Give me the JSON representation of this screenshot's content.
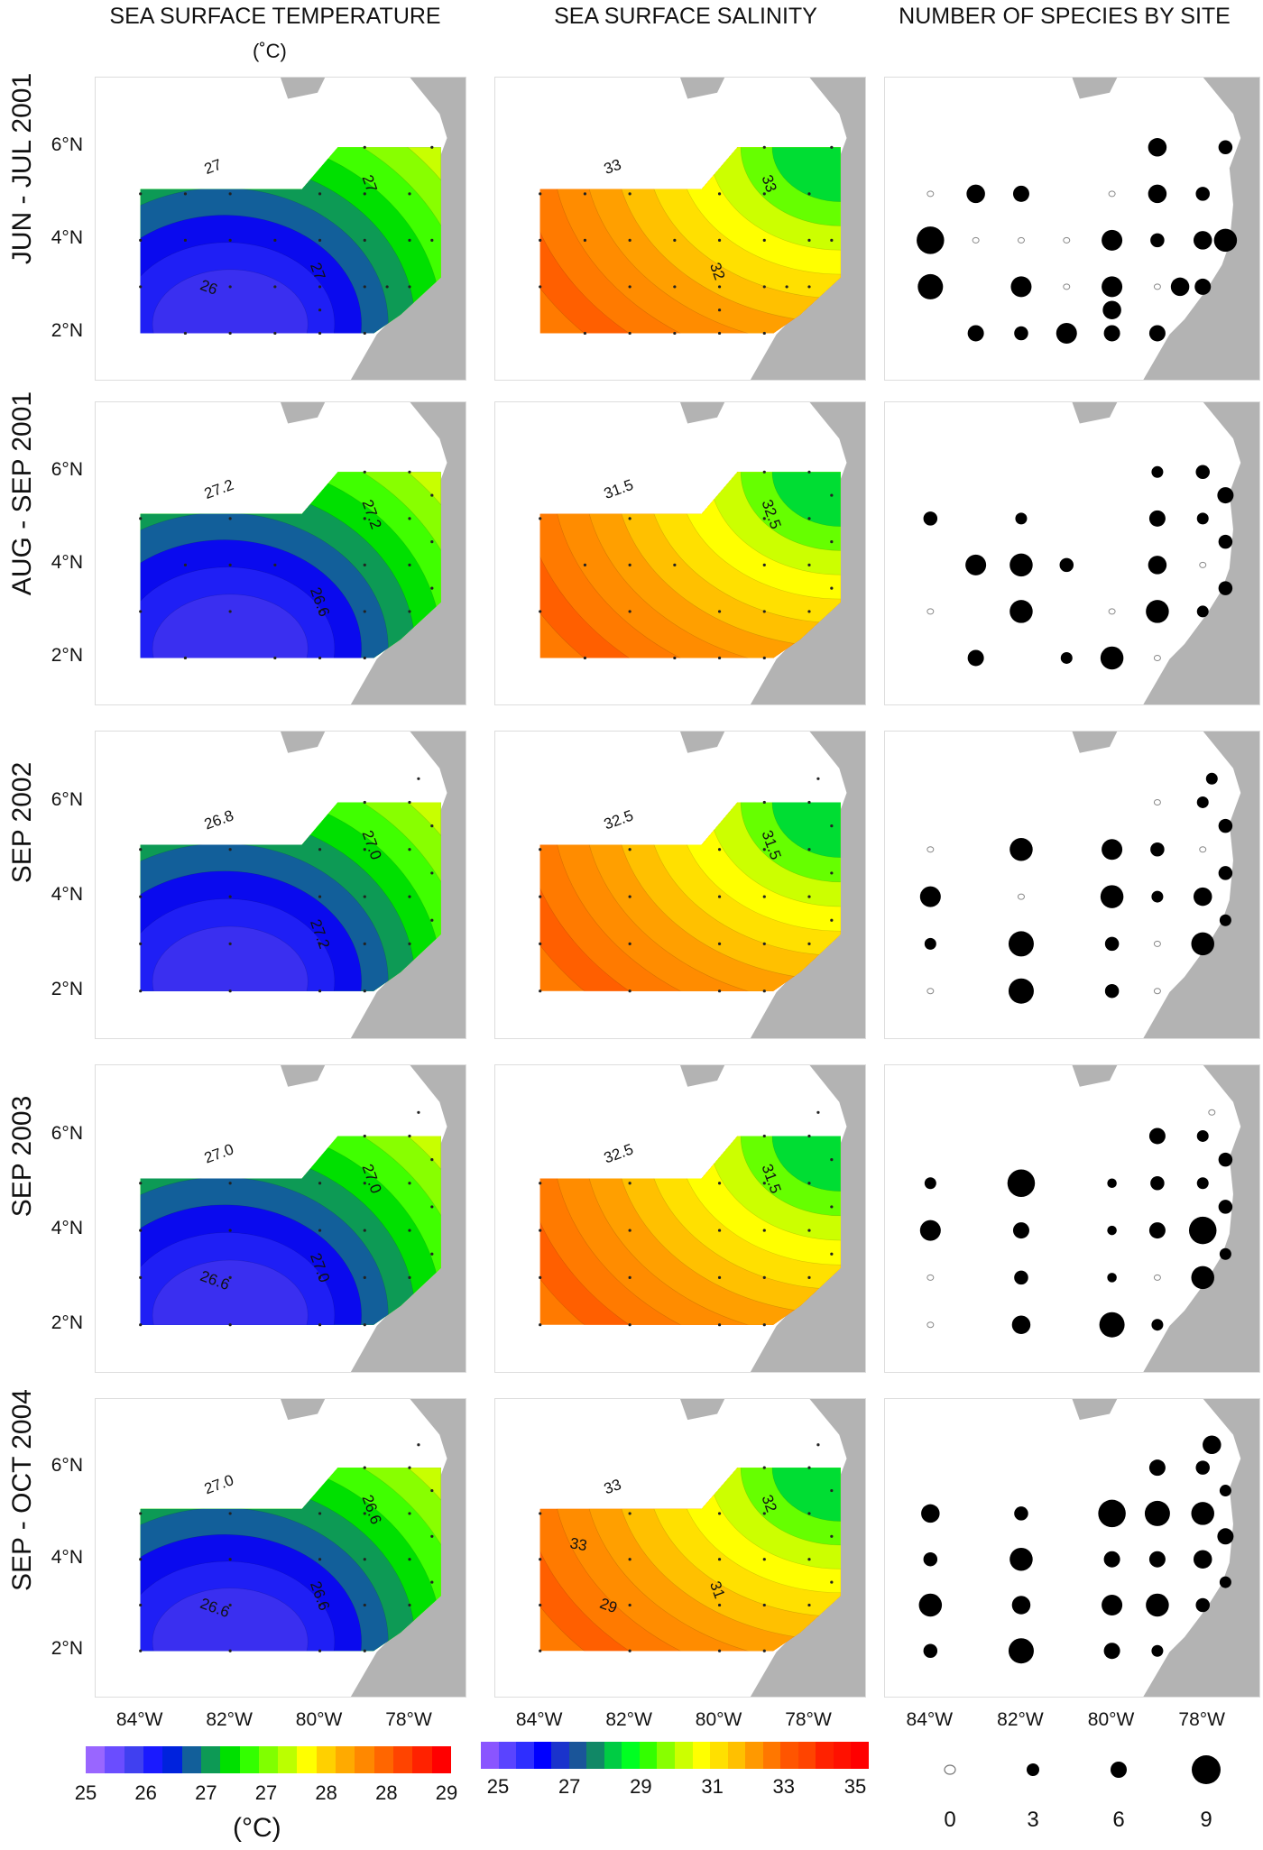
{
  "figure": {
    "columns": [
      {
        "title": "SEA SURFACE TEMPERATURE",
        "unit": "(˚C)"
      },
      {
        "title": "SEA SURFACE SALINITY"
      },
      {
        "title": "NUMBER OF SPECIES BY SITE"
      }
    ],
    "rows": [
      "JUN - JUL 2001",
      "AUG - SEP 2001",
      "SEP  2002",
      "SEP  2003",
      "SEP - OCT  2004"
    ],
    "y_ticks": [
      "6°N",
      "4°N",
      "2°N"
    ],
    "x_ticks": [
      "84°W",
      "82°W",
      "80°W",
      "78°W"
    ],
    "land_color": "#b3b3b3",
    "sst_colorbar": {
      "labels": [
        "25",
        "26",
        "27",
        "27",
        "28",
        "28",
        "29"
      ],
      "unit": "(°C)",
      "colors": [
        "#9966ff",
        "#6a4dff",
        "#4040f0",
        "#1a1aff",
        "#0022dd",
        "#125f9a",
        "#0d9a55",
        "#00e000",
        "#33ff00",
        "#80ff00",
        "#bbff00",
        "#ffff00",
        "#ffd000",
        "#ffaa00",
        "#ff8800",
        "#ff6600",
        "#ff4400",
        "#ff2200",
        "#ff0000"
      ]
    },
    "sss_colorbar": {
      "labels": [
        "25",
        "27",
        "29",
        "31",
        "33",
        "35"
      ],
      "colors": [
        "#8a55ff",
        "#5a44ff",
        "#2e2eff",
        "#0000ff",
        "#1a33cc",
        "#1a5599",
        "#118866",
        "#00cc44",
        "#00ff22",
        "#33ff00",
        "#88ff00",
        "#ccff00",
        "#ffff00",
        "#ffe000",
        "#ffc000",
        "#ff9900",
        "#ff7700",
        "#ff5500",
        "#ff4400",
        "#ff2200",
        "#ff1100",
        "#ff0000"
      ]
    },
    "species_legend": {
      "labels": [
        "0",
        "3",
        "6",
        "9"
      ]
    }
  },
  "chart_data": [
    {
      "type": "heatmap",
      "title": "SEA SURFACE TEMPERATURE (°C)",
      "panels": [
        {
          "period": "JUN - JUL 2001",
          "contour_labels": [
            "27",
            "27",
            "27",
            "26"
          ],
          "range_approx": [
            25.2,
            27.8
          ]
        },
        {
          "period": "AUG - SEP 2001",
          "contour_labels": [
            "27.2",
            "27.2",
            "26.6"
          ],
          "range_approx": [
            26.2,
            28.0
          ]
        },
        {
          "period": "SEP 2002",
          "contour_labels": [
            "26.8",
            "27.0",
            "27.2"
          ],
          "range_approx": [
            26.5,
            27.4
          ]
        },
        {
          "period": "SEP 2003",
          "contour_labels": [
            "27.0",
            "27.0",
            "27.0",
            "26.6"
          ],
          "range_approx": [
            25.8,
            29.0
          ]
        },
        {
          "period": "SEP - OCT 2004",
          "contour_labels": [
            "27.0",
            "26.6",
            "26.6",
            "26.6"
          ],
          "range_approx": [
            26.2,
            27.6
          ]
        }
      ],
      "colorbar_ticks": [
        25,
        26,
        27,
        27,
        28,
        28,
        29
      ],
      "xlabel": "Longitude",
      "ylabel": "Latitude",
      "xticks": [
        "84°W",
        "82°W",
        "80°W",
        "78°W"
      ],
      "yticks": [
        "2°N",
        "4°N",
        "6°N"
      ]
    },
    {
      "type": "heatmap",
      "title": "SEA SURFACE SALINITY",
      "panels": [
        {
          "period": "JUN - JUL 2001",
          "contour_labels": [
            "33",
            "33",
            "32"
          ],
          "range_approx": [
            29,
            33.5
          ]
        },
        {
          "period": "AUG - SEP 2001",
          "contour_labels": [
            "31.5",
            "32.5"
          ],
          "range_approx": [
            28,
            33.3
          ]
        },
        {
          "period": "SEP 2002",
          "contour_labels": [
            "32.5",
            "31.5"
          ],
          "range_approx": [
            29.5,
            33.6
          ]
        },
        {
          "period": "SEP 2003",
          "contour_labels": [
            "32.5",
            "31.5"
          ],
          "range_approx": [
            30,
            33.5
          ]
        },
        {
          "period": "SEP - OCT 2004",
          "contour_labels": [
            "33",
            "32",
            "31",
            "29",
            "33"
          ],
          "range_approx": [
            25,
            35
          ]
        }
      ],
      "colorbar_ticks": [
        25,
        27,
        29,
        31,
        33,
        35
      ],
      "xticks": [
        "84°W",
        "82°W",
        "80°W",
        "78°W"
      ],
      "yticks": [
        "2°N",
        "4°N",
        "6°N"
      ]
    },
    {
      "type": "scatter",
      "title": "NUMBER OF SPECIES BY SITE",
      "size_legend": [
        0,
        3,
        6,
        9
      ],
      "panels": [
        {
          "period": "JUN - JUL 2001",
          "sites": [
            {
              "lon": -79,
              "lat": 6,
              "n": 5
            },
            {
              "lon": -77.5,
              "lat": 6,
              "n": 3
            },
            {
              "lon": -84,
              "lat": 5,
              "n": 0
            },
            {
              "lon": -83,
              "lat": 5,
              "n": 5
            },
            {
              "lon": -82,
              "lat": 5,
              "n": 4
            },
            {
              "lon": -80,
              "lat": 5,
              "n": 0
            },
            {
              "lon": -79,
              "lat": 5,
              "n": 5
            },
            {
              "lon": -78,
              "lat": 5,
              "n": 3
            },
            {
              "lon": -84,
              "lat": 4,
              "n": 9
            },
            {
              "lon": -83,
              "lat": 4,
              "n": 0
            },
            {
              "lon": -82,
              "lat": 4,
              "n": 0
            },
            {
              "lon": -81,
              "lat": 4,
              "n": 0
            },
            {
              "lon": -80,
              "lat": 4,
              "n": 6
            },
            {
              "lon": -79,
              "lat": 4,
              "n": 3
            },
            {
              "lon": -78,
              "lat": 4,
              "n": 5
            },
            {
              "lon": -77.5,
              "lat": 4,
              "n": 7
            },
            {
              "lon": -84,
              "lat": 3,
              "n": 8
            },
            {
              "lon": -82,
              "lat": 3,
              "n": 6
            },
            {
              "lon": -81,
              "lat": 3,
              "n": 0
            },
            {
              "lon": -80,
              "lat": 3,
              "n": 6
            },
            {
              "lon": -80,
              "lat": 2.5,
              "n": 5
            },
            {
              "lon": -79,
              "lat": 3,
              "n": 0
            },
            {
              "lon": -78.5,
              "lat": 3,
              "n": 5
            },
            {
              "lon": -78,
              "lat": 3,
              "n": 4
            },
            {
              "lon": -83,
              "lat": 2,
              "n": 4
            },
            {
              "lon": -82,
              "lat": 2,
              "n": 3
            },
            {
              "lon": -81,
              "lat": 2,
              "n": 6
            },
            {
              "lon": -80,
              "lat": 2,
              "n": 4
            },
            {
              "lon": -79,
              "lat": 2,
              "n": 4
            }
          ]
        },
        {
          "period": "AUG - SEP 2001",
          "sites": [
            {
              "lon": -79,
              "lat": 6,
              "n": 2
            },
            {
              "lon": -78,
              "lat": 6,
              "n": 3
            },
            {
              "lon": -77.5,
              "lat": 5.5,
              "n": 4
            },
            {
              "lon": -84,
              "lat": 5,
              "n": 3
            },
            {
              "lon": -82,
              "lat": 5,
              "n": 2
            },
            {
              "lon": -79,
              "lat": 5,
              "n": 4
            },
            {
              "lon": -78,
              "lat": 5,
              "n": 2
            },
            {
              "lon": -77.5,
              "lat": 4.5,
              "n": 3
            },
            {
              "lon": -83,
              "lat": 4,
              "n": 6
            },
            {
              "lon": -82,
              "lat": 4,
              "n": 7
            },
            {
              "lon": -81,
              "lat": 4,
              "n": 3
            },
            {
              "lon": -79,
              "lat": 4,
              "n": 5
            },
            {
              "lon": -78,
              "lat": 4,
              "n": 0
            },
            {
              "lon": -77.5,
              "lat": 3.5,
              "n": 3
            },
            {
              "lon": -84,
              "lat": 3,
              "n": 0
            },
            {
              "lon": -82,
              "lat": 3,
              "n": 7
            },
            {
              "lon": -80,
              "lat": 3,
              "n": 0
            },
            {
              "lon": -79,
              "lat": 3,
              "n": 7
            },
            {
              "lon": -78,
              "lat": 3,
              "n": 2
            },
            {
              "lon": -83,
              "lat": 2,
              "n": 4
            },
            {
              "lon": -81,
              "lat": 2,
              "n": 2
            },
            {
              "lon": -80,
              "lat": 2,
              "n": 7
            },
            {
              "lon": -79,
              "lat": 2,
              "n": 0
            }
          ]
        },
        {
          "period": "SEP 2002",
          "sites": [
            {
              "lon": -77.8,
              "lat": 6.5,
              "n": 2
            },
            {
              "lon": -79,
              "lat": 6,
              "n": 0
            },
            {
              "lon": -78,
              "lat": 6,
              "n": 2
            },
            {
              "lon": -77.5,
              "lat": 5.5,
              "n": 3
            },
            {
              "lon": -84,
              "lat": 5,
              "n": 0
            },
            {
              "lon": -82,
              "lat": 5,
              "n": 7
            },
            {
              "lon": -80,
              "lat": 5,
              "n": 6
            },
            {
              "lon": -79,
              "lat": 5,
              "n": 3
            },
            {
              "lon": -78,
              "lat": 5,
              "n": 0
            },
            {
              "lon": -77.5,
              "lat": 4.5,
              "n": 3
            },
            {
              "lon": -84,
              "lat": 4,
              "n": 6
            },
            {
              "lon": -82,
              "lat": 4,
              "n": 0
            },
            {
              "lon": -80,
              "lat": 4,
              "n": 7
            },
            {
              "lon": -79,
              "lat": 4,
              "n": 2
            },
            {
              "lon": -78,
              "lat": 4,
              "n": 5
            },
            {
              "lon": -77.5,
              "lat": 3.5,
              "n": 2
            },
            {
              "lon": -84,
              "lat": 3,
              "n": 2
            },
            {
              "lon": -82,
              "lat": 3,
              "n": 8
            },
            {
              "lon": -80,
              "lat": 3,
              "n": 3
            },
            {
              "lon": -79,
              "lat": 3,
              "n": 0
            },
            {
              "lon": -78,
              "lat": 3,
              "n": 7
            },
            {
              "lon": -84,
              "lat": 2,
              "n": 0
            },
            {
              "lon": -82,
              "lat": 2,
              "n": 8
            },
            {
              "lon": -80,
              "lat": 2,
              "n": 3
            },
            {
              "lon": -79,
              "lat": 2,
              "n": 0
            }
          ]
        },
        {
          "period": "SEP 2003",
          "sites": [
            {
              "lon": -77.8,
              "lat": 6.5,
              "n": 0
            },
            {
              "lon": -79,
              "lat": 6,
              "n": 4
            },
            {
              "lon": -78,
              "lat": 6,
              "n": 2
            },
            {
              "lon": -77.5,
              "lat": 5.5,
              "n": 3
            },
            {
              "lon": -84,
              "lat": 5,
              "n": 2
            },
            {
              "lon": -82,
              "lat": 5,
              "n": 9
            },
            {
              "lon": -80,
              "lat": 5,
              "n": 1
            },
            {
              "lon": -79,
              "lat": 5,
              "n": 3
            },
            {
              "lon": -78,
              "lat": 5,
              "n": 2
            },
            {
              "lon": -77.5,
              "lat": 4.5,
              "n": 3
            },
            {
              "lon": -84,
              "lat": 4,
              "n": 6
            },
            {
              "lon": -82,
              "lat": 4,
              "n": 4
            },
            {
              "lon": -80,
              "lat": 4,
              "n": 1
            },
            {
              "lon": -79,
              "lat": 4,
              "n": 4
            },
            {
              "lon": -78,
              "lat": 4,
              "n": 9
            },
            {
              "lon": -77.5,
              "lat": 3.5,
              "n": 2
            },
            {
              "lon": -84,
              "lat": 3,
              "n": 0
            },
            {
              "lon": -82,
              "lat": 3,
              "n": 3
            },
            {
              "lon": -80,
              "lat": 3,
              "n": 1
            },
            {
              "lon": -79,
              "lat": 3,
              "n": 0
            },
            {
              "lon": -78,
              "lat": 3,
              "n": 7
            },
            {
              "lon": -84,
              "lat": 2,
              "n": 0
            },
            {
              "lon": -82,
              "lat": 2,
              "n": 5
            },
            {
              "lon": -80,
              "lat": 2,
              "n": 8
            },
            {
              "lon": -79,
              "lat": 2,
              "n": 2
            }
          ]
        },
        {
          "period": "SEP - OCT 2004",
          "sites": [
            {
              "lon": -77.8,
              "lat": 6.5,
              "n": 5
            },
            {
              "lon": -79,
              "lat": 6,
              "n": 4
            },
            {
              "lon": -78,
              "lat": 6,
              "n": 3
            },
            {
              "lon": -77.5,
              "lat": 5.5,
              "n": 2
            },
            {
              "lon": -84,
              "lat": 5,
              "n": 5
            },
            {
              "lon": -82,
              "lat": 5,
              "n": 3
            },
            {
              "lon": -80,
              "lat": 5,
              "n": 9
            },
            {
              "lon": -79,
              "lat": 5,
              "n": 8
            },
            {
              "lon": -78,
              "lat": 5,
              "n": 7
            },
            {
              "lon": -77.5,
              "lat": 4.5,
              "n": 4
            },
            {
              "lon": -84,
              "lat": 4,
              "n": 3
            },
            {
              "lon": -82,
              "lat": 4,
              "n": 7
            },
            {
              "lon": -80,
              "lat": 4,
              "n": 4
            },
            {
              "lon": -79,
              "lat": 4,
              "n": 4
            },
            {
              "lon": -78,
              "lat": 4,
              "n": 5
            },
            {
              "lon": -77.5,
              "lat": 3.5,
              "n": 2
            },
            {
              "lon": -84,
              "lat": 3,
              "n": 7
            },
            {
              "lon": -82,
              "lat": 3,
              "n": 5
            },
            {
              "lon": -80,
              "lat": 3,
              "n": 6
            },
            {
              "lon": -79,
              "lat": 3,
              "n": 7
            },
            {
              "lon": -78,
              "lat": 3,
              "n": 3
            },
            {
              "lon": -84,
              "lat": 2,
              "n": 3
            },
            {
              "lon": -82,
              "lat": 2,
              "n": 8
            },
            {
              "lon": -80,
              "lat": 2,
              "n": 4
            },
            {
              "lon": -79,
              "lat": 2,
              "n": 2
            }
          ]
        }
      ]
    }
  ]
}
